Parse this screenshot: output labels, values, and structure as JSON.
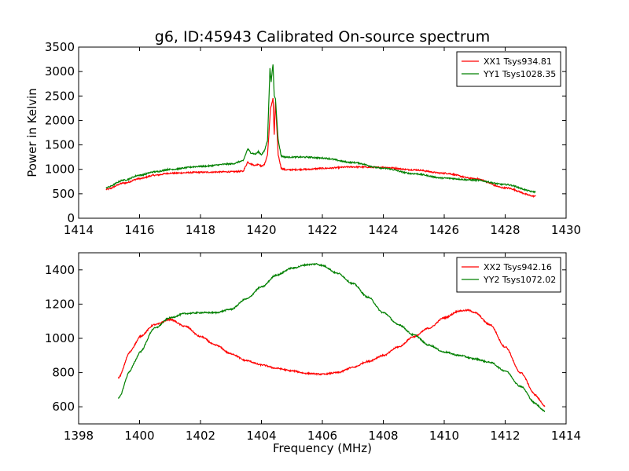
{
  "figure": {
    "title": "g6, ID:45943 Calibrated On-source spectrum"
  },
  "chart_data": [
    {
      "type": "line",
      "title": "g6, ID:45943 Calibrated On-source spectrum",
      "xlabel": "",
      "ylabel": "Power in Kelvin",
      "xlim": [
        1414,
        1430
      ],
      "ylim": [
        0,
        3500
      ],
      "xticks": [
        1414,
        1416,
        1418,
        1420,
        1422,
        1424,
        1426,
        1428,
        1430
      ],
      "yticks": [
        0,
        500,
        1000,
        1500,
        2000,
        2500,
        3000,
        3500
      ],
      "grid": false,
      "legend_position": "top-right",
      "series": [
        {
          "name": "XX1 Tsys934.81",
          "color": "#ff0000",
          "x": [
            1414.9,
            1415.5,
            1416.0,
            1416.5,
            1417.0,
            1418.0,
            1419.0,
            1419.4,
            1419.55,
            1419.65,
            1419.8,
            1419.9,
            1420.0,
            1420.1,
            1420.2,
            1420.3,
            1420.38,
            1420.42,
            1420.46,
            1420.55,
            1420.65,
            1420.8,
            1421.5,
            1422.0,
            1423.0,
            1424.0,
            1425.0,
            1426.0,
            1427.0,
            1428.0,
            1429.0
          ],
          "y": [
            590,
            720,
            810,
            880,
            920,
            940,
            950,
            960,
            1150,
            1110,
            1080,
            1110,
            1060,
            1100,
            1300,
            2250,
            2450,
            1700,
            2380,
            1300,
            1020,
            990,
            1000,
            1020,
            1050,
            1040,
            990,
            920,
            810,
            620,
            450
          ]
        },
        {
          "name": "YY1 Tsys1028.35",
          "color": "#008000",
          "x": [
            1414.9,
            1415.5,
            1416.0,
            1416.5,
            1417.0,
            1418.0,
            1419.0,
            1419.4,
            1419.55,
            1419.65,
            1419.8,
            1419.9,
            1420.0,
            1420.1,
            1420.2,
            1420.28,
            1420.32,
            1420.38,
            1420.42,
            1420.46,
            1420.55,
            1420.65,
            1420.8,
            1421.5,
            1422.0,
            1423.0,
            1424.0,
            1425.0,
            1426.0,
            1427.0,
            1428.0,
            1429.0
          ],
          "y": [
            630,
            780,
            880,
            950,
            1000,
            1060,
            1110,
            1170,
            1420,
            1340,
            1310,
            1360,
            1300,
            1380,
            1600,
            3060,
            2800,
            3150,
            2500,
            2450,
            1600,
            1270,
            1250,
            1250,
            1230,
            1140,
            1020,
            910,
            820,
            780,
            690,
            540
          ]
        }
      ]
    },
    {
      "type": "line",
      "title": "",
      "xlabel": "Frequency (MHz)",
      "ylabel": "",
      "xlim": [
        1398,
        1414
      ],
      "ylim": [
        500,
        1500
      ],
      "xticks": [
        1398,
        1400,
        1402,
        1404,
        1406,
        1408,
        1410,
        1412,
        1414
      ],
      "yticks": [
        600,
        800,
        1000,
        1200,
        1400
      ],
      "grid": false,
      "legend_position": "top-right",
      "series": [
        {
          "name": "XX2 Tsys942.16",
          "color": "#ff0000",
          "x": [
            1399.3,
            1399.7,
            1400.0,
            1400.5,
            1401.0,
            1401.5,
            1402.0,
            1402.5,
            1403.0,
            1403.5,
            1404.0,
            1404.5,
            1405.0,
            1405.5,
            1406.0,
            1406.5,
            1407.0,
            1407.5,
            1408.0,
            1408.5,
            1409.0,
            1409.5,
            1410.0,
            1410.5,
            1410.8,
            1411.0,
            1411.5,
            1412.0,
            1412.5,
            1413.0,
            1413.3
          ],
          "y": [
            770,
            920,
            1010,
            1080,
            1110,
            1070,
            1010,
            960,
            910,
            870,
            845,
            825,
            810,
            795,
            790,
            800,
            830,
            865,
            900,
            950,
            1010,
            1060,
            1120,
            1160,
            1165,
            1150,
            1080,
            950,
            800,
            670,
            600
          ]
        },
        {
          "name": "YY2 Tsys1072.02",
          "color": "#008000",
          "x": [
            1399.3,
            1399.7,
            1400.0,
            1400.5,
            1401.0,
            1401.5,
            1402.0,
            1402.5,
            1403.0,
            1403.5,
            1404.0,
            1404.5,
            1405.0,
            1405.5,
            1405.8,
            1406.0,
            1406.5,
            1407.0,
            1407.5,
            1408.0,
            1408.5,
            1409.0,
            1409.5,
            1410.0,
            1410.5,
            1411.0,
            1411.5,
            1412.0,
            1412.5,
            1413.0,
            1413.3
          ],
          "y": [
            650,
            810,
            920,
            1060,
            1120,
            1145,
            1150,
            1150,
            1170,
            1230,
            1300,
            1370,
            1410,
            1430,
            1435,
            1425,
            1380,
            1320,
            1240,
            1150,
            1080,
            1020,
            960,
            920,
            900,
            880,
            860,
            810,
            720,
            620,
            570
          ]
        }
      ]
    }
  ]
}
